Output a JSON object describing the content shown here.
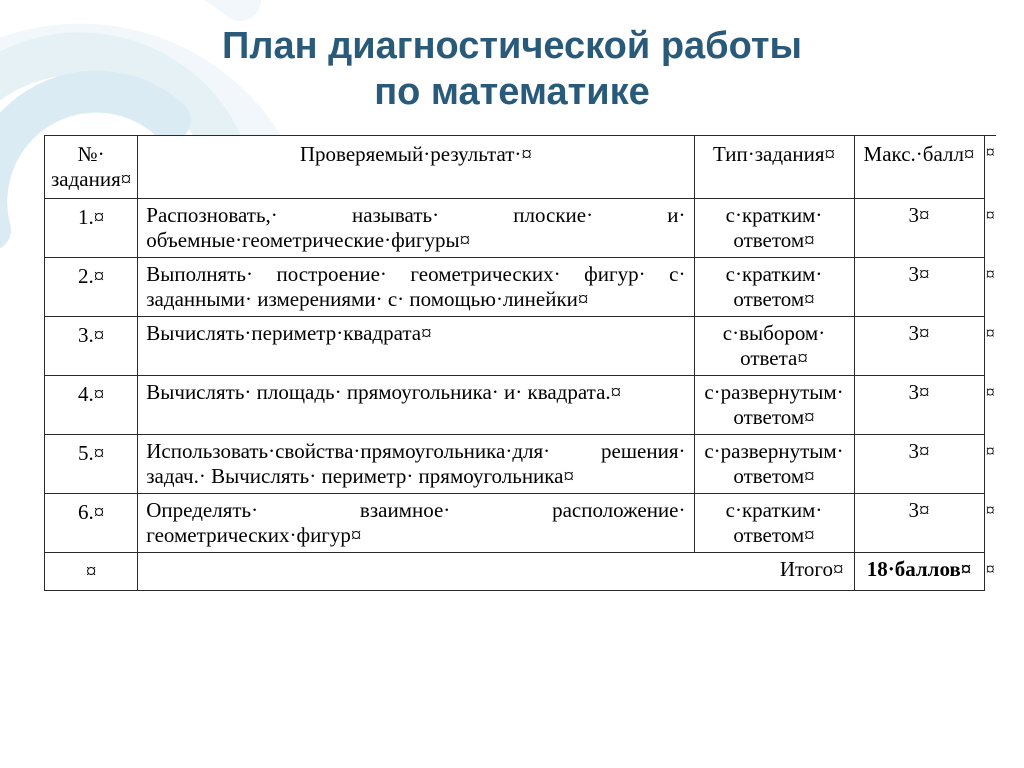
{
  "title_line1": "План диагностической работы",
  "title_line2": "по математике",
  "title_color": "#2a5a7a",
  "border_color": "#2a2a2a",
  "columns": {
    "num": "№·\nзадания¤",
    "desc": "Проверяемый·результат·¤",
    "type": "Тип·задания¤",
    "score": "Макс.·балл¤"
  },
  "rows": [
    {
      "num": "1.¤",
      "desc": "Распозновать,· называть· плоские· и· объемные·геометрические·фигуры¤",
      "type": "с·кратким· ответом¤",
      "score": "3¤"
    },
    {
      "num": "2.¤",
      "desc": "Выполнять· построение· геометрических· фигур· с· заданными· измерениями· с· помощью·линейки¤",
      "type": "с·кратким· ответом¤",
      "score": "3¤"
    },
    {
      "num": "3.¤",
      "desc": "Вычислять·периметр·квадрата¤",
      "type": "с·выбором· ответа¤",
      "score": "3¤"
    },
    {
      "num": "4.¤",
      "desc": "Вычислять· площадь· прямоугольника· и· квадрата.¤",
      "type": "с·развернутым· ответом¤",
      "score": "3¤"
    },
    {
      "num": "5.¤",
      "desc": "Использовать·свойства·прямоугольника·для· решения· задач.· Вычислять· периметр· прямоугольника¤",
      "type": "с·развернутым· ответом¤",
      "score": "3¤"
    },
    {
      "num": "6.¤",
      "desc": "Определять· взаимное· расположение· геометрических·фигур¤",
      "type": "с·кратким· ответом¤",
      "score": "3¤"
    }
  ],
  "total": {
    "num": "¤",
    "label": "Итого¤",
    "score": "18·баллов¤"
  },
  "margin_mark": "¤",
  "decor_colors": [
    "#e6f2f7",
    "#d2e7f0",
    "#bedceb"
  ]
}
